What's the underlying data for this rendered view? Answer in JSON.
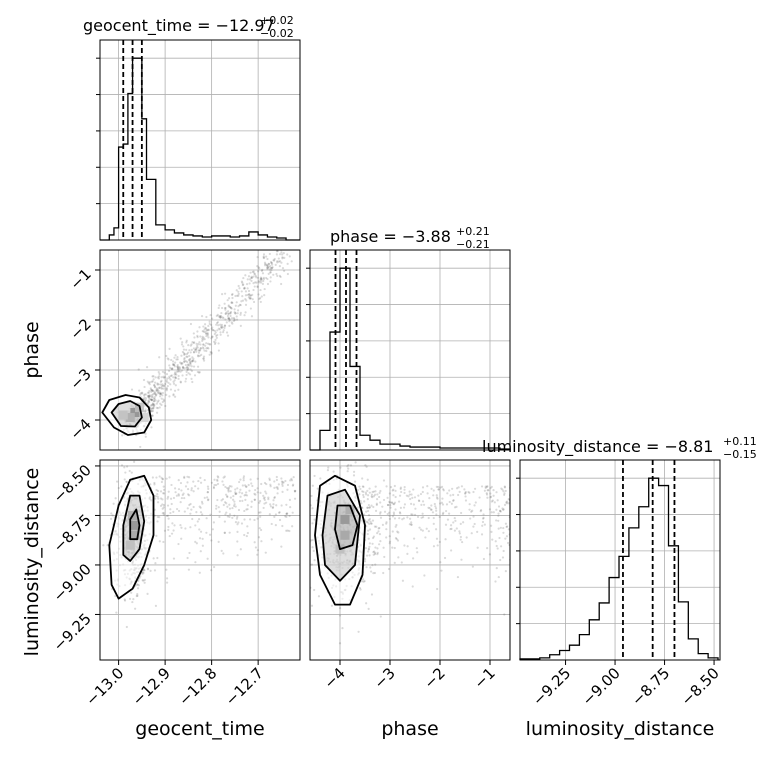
{
  "chart_data": {
    "type": "corner",
    "parameters": [
      "geocent_time",
      "phase",
      "luminosity_distance"
    ],
    "titles": [
      {
        "name": "geocent_time",
        "median": "−12.97",
        "plus": "+0.02",
        "minus": "−0.02"
      },
      {
        "name": "phase",
        "median": "−3.88",
        "plus": "+0.21",
        "minus": "−0.21"
      },
      {
        "name": "luminosity_distance",
        "median": "−8.81",
        "plus": "+0.11",
        "minus": "−0.15"
      }
    ],
    "ranges": {
      "geocent_time": [
        -13.04,
        -12.61
      ],
      "phase": [
        -4.6,
        -0.6
      ],
      "luminosity_distance": [
        -9.48,
        -8.47
      ]
    },
    "ticks": {
      "geocent_time": {
        "values": [
          -13.0,
          -12.9,
          -12.8,
          -12.7
        ],
        "labels": [
          "−13.0",
          "−12.9",
          "−12.8",
          "−12.7"
        ]
      },
      "phase": {
        "values": [
          -4,
          -3,
          -2,
          -1
        ],
        "labels": [
          "−4",
          "−3",
          "−2",
          "−1"
        ]
      },
      "luminosity_distance": {
        "values": [
          -9.25,
          -9.0,
          -8.75,
          -8.5
        ],
        "labels": [
          "−9.25",
          "−9.00",
          "−8.75",
          "−8.50"
        ]
      }
    },
    "quantiles": {
      "geocent_time": [
        -12.99,
        -12.97,
        -12.95
      ],
      "phase": [
        -4.09,
        -3.88,
        -3.67
      ],
      "luminosity_distance": [
        -8.96,
        -8.81,
        -8.7
      ]
    },
    "histograms": {
      "geocent_time": {
        "edges": [
          -13.04,
          -13.03,
          -13.02,
          -13.01,
          -13.0,
          -12.99,
          -12.98,
          -12.97,
          -12.96,
          -12.95,
          -12.94,
          -12.93,
          -12.92,
          -12.91,
          -12.9,
          -12.89,
          -12.88,
          -12.87,
          -12.86,
          -12.85,
          -12.84,
          -12.83,
          -12.82,
          -12.81,
          -12.8,
          -12.79,
          -12.78,
          -12.77,
          -12.76,
          -12.75,
          -12.74,
          -12.73,
          -12.72,
          -12.71,
          -12.7,
          -12.69,
          -12.68,
          -12.67,
          -12.66,
          -12.65,
          -12.64,
          -12.63,
          -12.62,
          -12.61
        ],
        "counts": [
          0,
          0,
          5,
          12,
          92,
          95,
          145,
          180,
          180,
          120,
          60,
          60,
          15,
          15,
          10,
          10,
          7,
          7,
          5,
          5,
          4,
          4,
          3,
          3,
          4,
          4,
          4,
          4,
          3,
          3,
          4,
          4,
          8,
          8,
          5,
          5,
          3,
          3,
          2,
          2,
          0,
          0,
          0
        ]
      },
      "phase": {
        "edges": [
          -4.6,
          -4.4,
          -4.2,
          -4.0,
          -3.8,
          -3.6,
          -3.4,
          -3.2,
          -3.0,
          -2.8,
          -2.6,
          -2.4,
          -2.2,
          -2.0,
          -1.8,
          -1.6,
          -1.4,
          -1.2,
          -1.0,
          -0.8,
          -0.6
        ],
        "counts": [
          0,
          20,
          120,
          185,
          85,
          15,
          10,
          6,
          6,
          4,
          3,
          3,
          3,
          2,
          2,
          2,
          2,
          2,
          2,
          1
        ]
      },
      "luminosity_distance": {
        "edges": [
          -9.48,
          -9.43,
          -9.38,
          -9.33,
          -9.28,
          -9.23,
          -9.18,
          -9.13,
          -9.08,
          -9.03,
          -8.98,
          -8.93,
          -8.88,
          -8.83,
          -8.78,
          -8.73,
          -8.68,
          -8.63,
          -8.58,
          -8.53,
          -8.48
        ],
        "counts": [
          1,
          1,
          2,
          5,
          9,
          14,
          24,
          38,
          54,
          78,
          98,
          125,
          145,
          172,
          165,
          108,
          55,
          20,
          6,
          2
        ]
      }
    },
    "panels": {
      "phase_vs_geocent_time": {
        "x": "geocent_time",
        "y": "phase",
        "contours": [
          [
            [
              -13.035,
              -3.85
            ],
            [
              -13.02,
              -3.6
            ],
            [
              -12.985,
              -3.5
            ],
            [
              -12.955,
              -3.55
            ],
            [
              -12.935,
              -3.75
            ],
            [
              -12.93,
              -4.0
            ],
            [
              -12.945,
              -4.25
            ],
            [
              -12.98,
              -4.3
            ],
            [
              -13.01,
              -4.15
            ],
            [
              -13.035,
              -3.85
            ]
          ],
          [
            [
              -13.015,
              -3.85
            ],
            [
              -13.0,
              -3.68
            ],
            [
              -12.975,
              -3.62
            ],
            [
              -12.955,
              -3.72
            ],
            [
              -12.95,
              -3.95
            ],
            [
              -12.965,
              -4.13
            ],
            [
              -12.995,
              -4.12
            ],
            [
              -13.015,
              -3.85
            ]
          ]
        ],
        "density_cells": [
          {
            "x": -12.965,
            "y": -3.85,
            "level": 0.95
          },
          {
            "x": -12.975,
            "y": -3.95,
            "level": 0.55
          },
          {
            "x": -12.955,
            "y": -3.75,
            "level": 0.45
          },
          {
            "x": -12.99,
            "y": -3.9,
            "level": 0.3
          },
          {
            "x": -12.945,
            "y": -3.95,
            "level": 0.3
          }
        ]
      },
      "luminosity_distance_vs_geocent_time": {
        "x": "geocent_time",
        "y": "luminosity_distance",
        "contours": [
          [
            [
              -13.015,
              -9.1
            ],
            [
              -13.02,
              -8.9
            ],
            [
              -13.0,
              -8.7
            ],
            [
              -12.975,
              -8.57
            ],
            [
              -12.945,
              -8.55
            ],
            [
              -12.925,
              -8.65
            ],
            [
              -12.925,
              -8.85
            ],
            [
              -12.945,
              -9.0
            ],
            [
              -12.97,
              -9.12
            ],
            [
              -13.0,
              -9.17
            ],
            [
              -13.015,
              -9.1
            ]
          ],
          [
            [
              -12.99,
              -8.95
            ],
            [
              -12.99,
              -8.8
            ],
            [
              -12.975,
              -8.65
            ],
            [
              -12.955,
              -8.65
            ],
            [
              -12.945,
              -8.78
            ],
            [
              -12.955,
              -8.92
            ],
            [
              -12.975,
              -8.98
            ],
            [
              -12.99,
              -8.95
            ]
          ],
          [
            [
              -12.975,
              -8.87
            ],
            [
              -12.975,
              -8.77
            ],
            [
              -12.962,
              -8.72
            ],
            [
              -12.955,
              -8.8
            ],
            [
              -12.96,
              -8.87
            ],
            [
              -12.975,
              -8.87
            ]
          ]
        ],
        "density_cells": [
          {
            "x": -12.965,
            "y": -8.8,
            "level": 0.95
          },
          {
            "x": -12.965,
            "y": -8.85,
            "level": 0.6
          },
          {
            "x": -12.97,
            "y": -8.75,
            "level": 0.55
          },
          {
            "x": -12.975,
            "y": -8.9,
            "level": 0.35
          }
        ]
      },
      "luminosity_distance_vs_phase": {
        "x": "phase",
        "y": "luminosity_distance",
        "contours": [
          [
            [
              -4.5,
              -8.85
            ],
            [
              -4.4,
              -8.6
            ],
            [
              -4.1,
              -8.55
            ],
            [
              -3.7,
              -8.6
            ],
            [
              -3.5,
              -8.8
            ],
            [
              -3.55,
              -9.05
            ],
            [
              -3.8,
              -9.2
            ],
            [
              -4.1,
              -9.2
            ],
            [
              -4.4,
              -9.05
            ],
            [
              -4.5,
              -8.85
            ]
          ],
          [
            [
              -4.35,
              -8.85
            ],
            [
              -4.25,
              -8.65
            ],
            [
              -3.9,
              -8.62
            ],
            [
              -3.6,
              -8.75
            ],
            [
              -3.7,
              -9.0
            ],
            [
              -4.0,
              -9.08
            ],
            [
              -4.3,
              -9.0
            ],
            [
              -4.35,
              -8.85
            ]
          ],
          [
            [
              -4.1,
              -8.82
            ],
            [
              -4.05,
              -8.7
            ],
            [
              -3.8,
              -8.7
            ],
            [
              -3.65,
              -8.8
            ],
            [
              -3.75,
              -8.9
            ],
            [
              -4.0,
              -8.92
            ],
            [
              -4.1,
              -8.82
            ]
          ]
        ],
        "density_cells": [
          {
            "x": -3.9,
            "y": -8.77,
            "level": 0.95
          },
          {
            "x": -3.9,
            "y": -8.85,
            "level": 0.6
          },
          {
            "x": -3.8,
            "y": -8.72,
            "level": 0.5
          },
          {
            "x": -4.0,
            "y": -8.92,
            "level": 0.35
          }
        ]
      }
    },
    "grid": true
  }
}
